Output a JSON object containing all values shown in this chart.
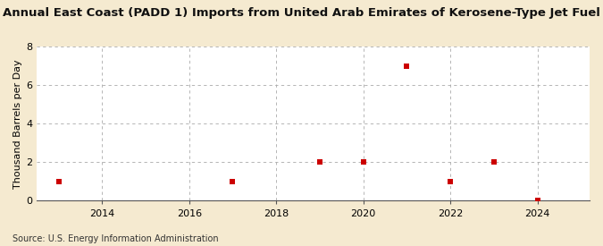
{
  "title": "Annual East Coast (PADD 1) Imports from United Arab Emirates of Kerosene-Type Jet Fuel",
  "ylabel": "Thousand Barrels per Day",
  "source": "Source: U.S. Energy Information Administration",
  "x": [
    2013,
    2017,
    2019,
    2020,
    2021,
    2022,
    2023,
    2024
  ],
  "y": [
    1.0,
    1.0,
    2.0,
    2.0,
    7.0,
    1.0,
    2.0,
    0.04
  ],
  "marker_color": "#cc0000",
  "marker_size": 5,
  "marker_style": "s",
  "xlim": [
    2012.5,
    2025.2
  ],
  "ylim": [
    0,
    8
  ],
  "yticks": [
    0,
    2,
    4,
    6,
    8
  ],
  "xticks": [
    2014,
    2016,
    2018,
    2020,
    2022,
    2024
  ],
  "plot_bg_color": "#ffffff",
  "fig_bg_color": "#f5ead0",
  "grid_color": "#aaaaaa",
  "title_fontsize": 9.5,
  "label_fontsize": 8,
  "source_fontsize": 7,
  "tick_fontsize": 8
}
